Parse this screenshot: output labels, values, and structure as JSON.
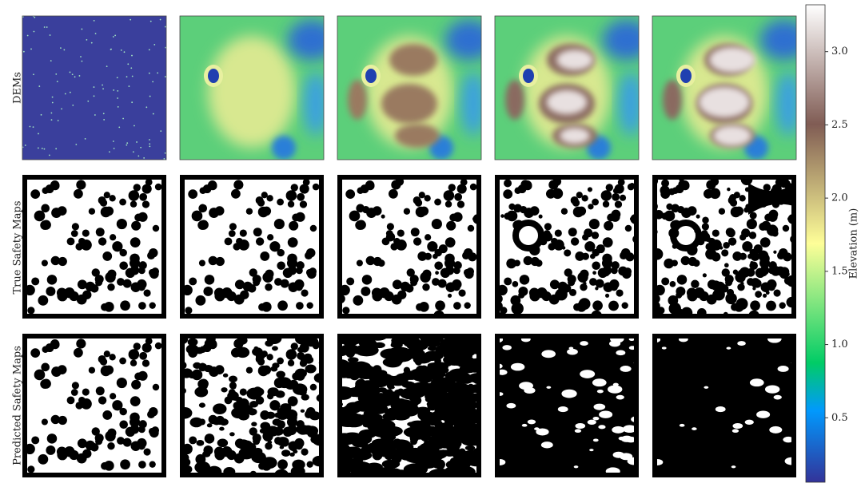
{
  "figure": {
    "row_labels": [
      "DEMs",
      "True Safety Maps",
      "Predicted Safety Maps"
    ],
    "colorbar": {
      "label": "Elevation (m)",
      "lim": [
        0.06,
        3.32
      ],
      "ticks": [
        0.5,
        {
          "value": 1,
          "label": "1.0"
        },
        1.5,
        {
          "value": 2,
          "label": "2.0"
        },
        2.5,
        {
          "value": 3,
          "label": "3.0"
        }
      ]
    }
  }
}
